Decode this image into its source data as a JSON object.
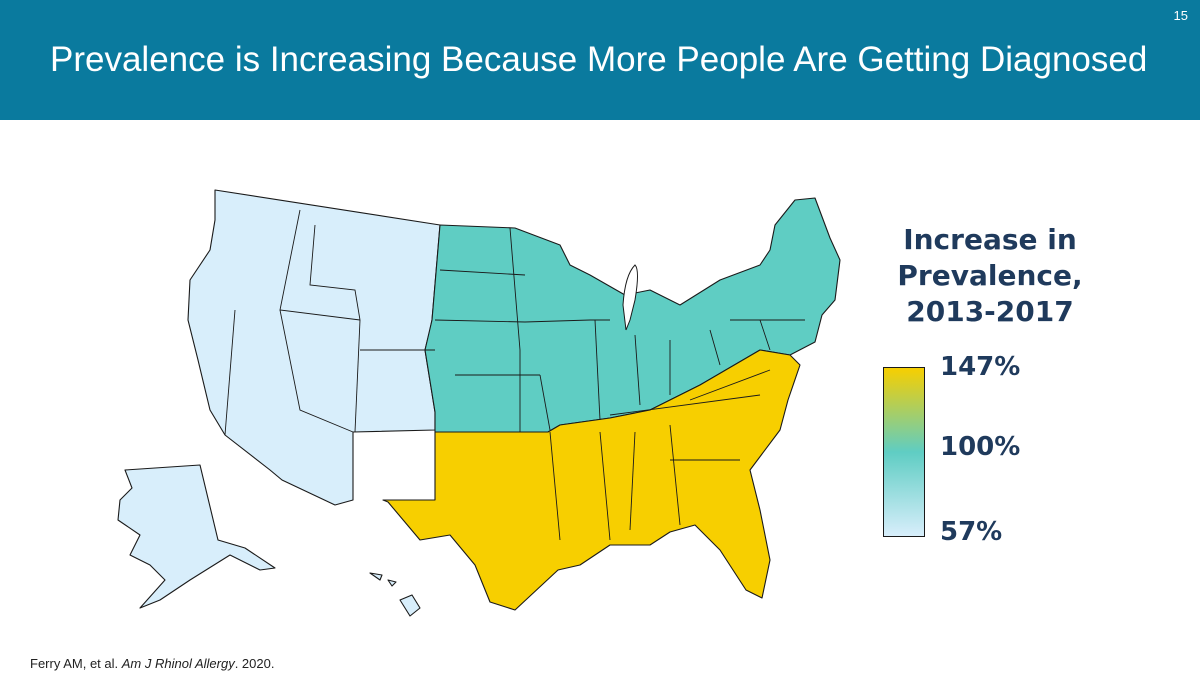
{
  "slide": {
    "number": "15",
    "title": "Prevalence is Increasing Because More People Are Getting Diagnosed"
  },
  "legend": {
    "title_lines": [
      "Increase in",
      "Prevalence,",
      "2013-2017"
    ],
    "max_label": "147%",
    "mid_label": "100%",
    "min_label": "57%",
    "colors": {
      "high": "#f7cf00",
      "mid": "#5fcdc3",
      "low": "#d8eefb"
    }
  },
  "map": {
    "regions": [
      {
        "name": "west",
        "fill_level": "low",
        "color": "#d8eefb"
      },
      {
        "name": "midwest-northeast",
        "fill_level": "mid",
        "color": "#5fcdc3"
      },
      {
        "name": "south",
        "fill_level": "high",
        "color": "#f7cf00"
      }
    ]
  },
  "citation": {
    "authors": "Ferry AM, et al. ",
    "journal": "Am J Rhinol Allergy",
    "year": ". 2020."
  }
}
